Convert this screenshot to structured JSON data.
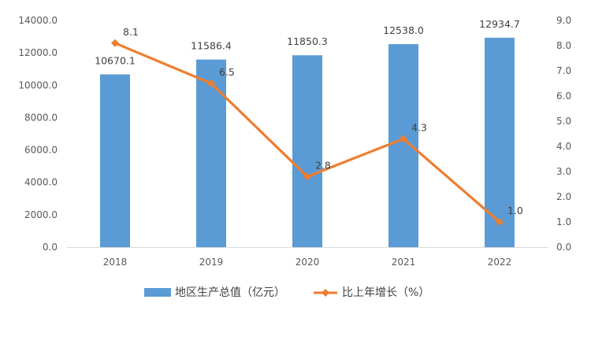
{
  "chart_data": {
    "type": "bar",
    "categories": [
      "2018",
      "2019",
      "2020",
      "2021",
      "2022"
    ],
    "series": [
      {
        "name": "地区生产总值（亿元）",
        "type": "bar",
        "axis": "left",
        "color": "#5B9BD5",
        "values": [
          10670.1,
          11586.4,
          11850.3,
          12538.0,
          12934.7
        ],
        "labels": [
          "10670.1",
          "11586.4",
          "11850.3",
          "12538.0",
          "12934.7"
        ]
      },
      {
        "name": "比上年增长（%）",
        "type": "line",
        "axis": "right",
        "color": "#ED7D31",
        "values": [
          8.1,
          6.5,
          2.8,
          4.3,
          1.0
        ],
        "labels": [
          "8.1",
          "6.5",
          "2.8",
          "4.3",
          "1.0"
        ]
      }
    ],
    "y_left": {
      "min": 0,
      "max": 14000,
      "ticks": [
        "0.0",
        "2000.0",
        "4000.0",
        "6000.0",
        "8000.0",
        "10000.0",
        "12000.0",
        "14000.0"
      ]
    },
    "y_right": {
      "min": 0,
      "max": 9,
      "ticks": [
        "0.0",
        "1.0",
        "2.0",
        "3.0",
        "4.0",
        "5.0",
        "6.0",
        "7.0",
        "8.0",
        "9.0"
      ]
    },
    "grid": false,
    "legend": "bottom"
  }
}
